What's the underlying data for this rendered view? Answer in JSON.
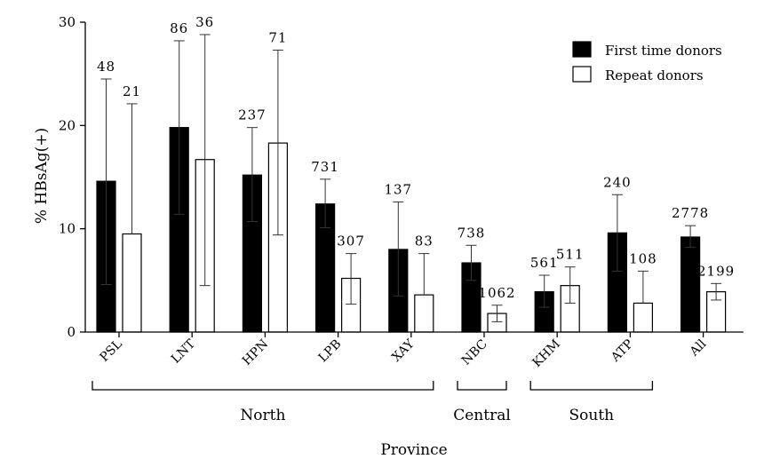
{
  "chart_data": {
    "type": "bar",
    "ylabel": "% HBsAg(+)",
    "xlabel": "Province",
    "ylim": [
      0,
      30
    ],
    "yticks": [
      0,
      10,
      20,
      30
    ],
    "grid": false,
    "legend_position": "top-right",
    "categories": [
      "PSL",
      "LNT",
      "HPN",
      "LPB",
      "XAY",
      "NBC",
      "KHM",
      "ATP",
      "All"
    ],
    "series": [
      {
        "name": "First time donors",
        "color": "#000000",
        "values": [
          14.6,
          19.8,
          15.2,
          12.4,
          8.0,
          6.7,
          3.9,
          9.6,
          9.2
        ],
        "err_low": [
          4.6,
          11.4,
          10.7,
          10.1,
          3.5,
          5.0,
          2.4,
          5.9,
          8.2
        ],
        "err_high": [
          24.5,
          28.2,
          19.8,
          14.8,
          12.6,
          8.4,
          5.5,
          13.3,
          10.3
        ],
        "n": [
          "48",
          "86",
          "237",
          "731",
          "137",
          "738",
          "561",
          "240",
          "2778"
        ]
      },
      {
        "name": "Repeat donors",
        "color": "#ffffff",
        "values": [
          9.5,
          16.7,
          18.3,
          5.2,
          3.6,
          1.8,
          4.5,
          2.8,
          3.9
        ],
        "err_low": [
          null,
          4.5,
          9.4,
          2.7,
          null,
          1.0,
          2.8,
          null,
          3.1
        ],
        "err_high": [
          22.1,
          28.8,
          27.3,
          7.6,
          7.6,
          2.6,
          6.3,
          5.9,
          4.7
        ],
        "n": [
          "21",
          "36",
          "71",
          "307",
          "83",
          "1062",
          "511",
          "108",
          "2199"
        ]
      }
    ],
    "groups": [
      {
        "label": "North",
        "from": 0,
        "to": 4
      },
      {
        "label": "Central",
        "from": 5,
        "to": 5
      },
      {
        "label": "South",
        "from": 6,
        "to": 7
      }
    ]
  }
}
